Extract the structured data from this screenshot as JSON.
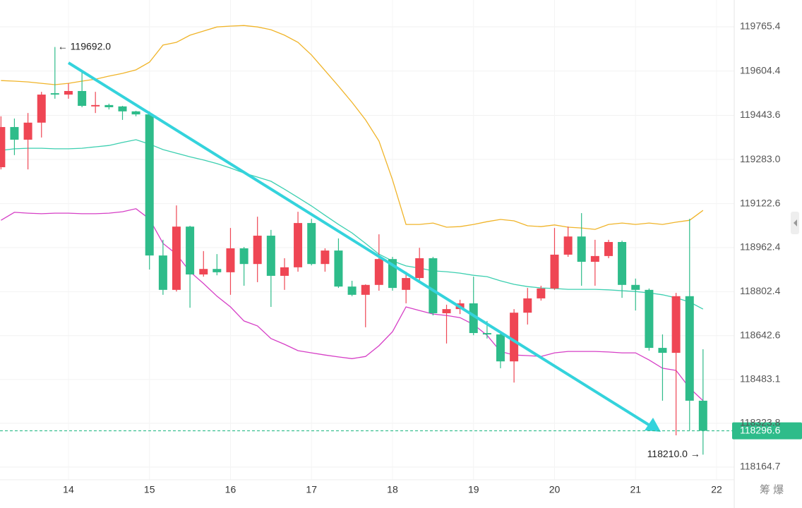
{
  "chart_data": {
    "type": "candlestick",
    "up_color": "#ef4654",
    "down_color": "#2ebc8a",
    "x": [
      13.167,
      13.333,
      13.5,
      13.667,
      13.833,
      14,
      14.167,
      14.333,
      14.5,
      14.667,
      14.833,
      15,
      15.167,
      15.333,
      15.5,
      15.667,
      15.833,
      16,
      16.167,
      16.333,
      16.5,
      16.667,
      16.833,
      17,
      17.167,
      17.333,
      17.5,
      17.667,
      17.833,
      18,
      18.167,
      18.333,
      18.5,
      18.667,
      18.833,
      19,
      19.167,
      19.333,
      19.5,
      19.667,
      19.833,
      20,
      20.167,
      20.333,
      20.5,
      20.667,
      20.833,
      21,
      21.167,
      21.333,
      21.5,
      21.667,
      21.833
    ],
    "open": [
      119255,
      119401,
      119355,
      119417,
      119524,
      119519,
      119532,
      119476,
      119481,
      119476,
      119458,
      119447,
      118934,
      118809,
      119039,
      118865,
      118885,
      118873,
      118960,
      118903,
      119006,
      118860,
      118891,
      119052,
      118903,
      118952,
      118821,
      118791,
      118827,
      118921,
      118809,
      118852,
      118924,
      118724,
      118739,
      118760,
      118652,
      118647,
      118549,
      118726,
      118778,
      118814,
      118937,
      119003,
      118911,
      118932,
      118983,
      118827,
      118809,
      118598,
      118580,
      118786,
      118406
    ],
    "high": [
      119440,
      119432,
      119452,
      119529,
      119692,
      119560,
      119604,
      119529,
      119486,
      119478,
      119460,
      119458,
      118991,
      119116,
      119042,
      118950,
      118939,
      119034,
      118965,
      119075,
      119027,
      118924,
      119093,
      119067,
      118960,
      118996,
      118842,
      118829,
      119011,
      118929,
      118875,
      118962,
      118929,
      118755,
      118773,
      118857,
      118696,
      118657,
      118739,
      118816,
      118824,
      119034,
      119039,
      119088,
      118991,
      118991,
      118988,
      118850,
      118814,
      118647,
      118798,
      119067,
      118593
    ],
    "low": [
      119247,
      119299,
      119247,
      119363,
      119504,
      119504,
      119473,
      119452,
      119465,
      119427,
      119440,
      118883,
      118791,
      118803,
      118744,
      118857,
      118862,
      118791,
      118824,
      118837,
      118747,
      118809,
      118875,
      118898,
      118875,
      118816,
      118786,
      118673,
      118806,
      118806,
      118760,
      118842,
      118716,
      118614,
      118721,
      118644,
      118632,
      118524,
      118472,
      118683,
      118770,
      118809,
      118929,
      118824,
      118824,
      118924,
      118780,
      118734,
      118588,
      118406,
      118280,
      118298,
      118210.0
    ],
    "close": [
      119401,
      119355,
      119417,
      119519,
      119519,
      119532,
      119478,
      119481,
      119473,
      119458,
      119447,
      118934,
      118809,
      119039,
      118865,
      118885,
      118873,
      118960,
      118903,
      119006,
      118860,
      118891,
      119052,
      118903,
      118952,
      118821,
      118791,
      118827,
      118921,
      118816,
      118852,
      118924,
      118724,
      118739,
      118760,
      118652,
      118647,
      118549,
      118726,
      118778,
      118814,
      118937,
      119003,
      118911,
      118932,
      118983,
      118827,
      118809,
      118598,
      118580,
      118786,
      118406,
      118296.6
    ],
    "bands": [
      {
        "color": "#f0b429",
        "values": [
          119570,
          119568,
          119565,
          119560,
          119555,
          119560,
          119568,
          119575,
          119586,
          119596,
          119609,
          119637,
          119699,
          119709,
          119735,
          119750,
          119765,
          119768,
          119770,
          119765,
          119755,
          119735,
          119709,
          119663,
          119606,
          119550,
          119491,
          119427,
          119350,
          119209,
          119047,
          119047,
          119052,
          119037,
          119039,
          119047,
          119057,
          119065,
          119060,
          119042,
          119039,
          119045,
          119037,
          119034,
          119029,
          119047,
          119052,
          119047,
          119052,
          119047,
          119055,
          119062,
          119098
        ]
      },
      {
        "color": "#3ccfb0",
        "values": [
          119316,
          119322,
          119324,
          119324,
          119322,
          119322,
          119324,
          119329,
          119334,
          119345,
          119355,
          119339,
          119319,
          119306,
          119293,
          119281,
          119268,
          119252,
          119234,
          119219,
          119204,
          119175,
          119145,
          119114,
          119080,
          119047,
          119016,
          118978,
          118939,
          118914,
          118896,
          118888,
          118878,
          118875,
          118870,
          118862,
          118857,
          118842,
          118829,
          118821,
          118816,
          118814,
          118811,
          118811,
          118811,
          118809,
          118806,
          118803,
          118798,
          118791,
          118780,
          118765,
          118739
        ]
      },
      {
        "color": "#d63fc6",
        "values": [
          119062,
          119091,
          119088,
          119086,
          119088,
          119088,
          119086,
          119086,
          119088,
          119093,
          119104,
          119067,
          118978,
          118939,
          118875,
          118832,
          118786,
          118747,
          118696,
          118678,
          118632,
          118611,
          118588,
          118580,
          118572,
          118565,
          118559,
          118567,
          118606,
          118657,
          118747,
          118734,
          118721,
          118716,
          118708,
          118683,
          118644,
          118585,
          118572,
          118570,
          118567,
          118580,
          118585,
          118585,
          118585,
          118583,
          118580,
          118580,
          118554,
          118524,
          118516,
          118452,
          118406
        ]
      }
    ],
    "xlim": [
      13.155,
      22.218
    ],
    "xticks": [
      14,
      15,
      16,
      17,
      18,
      19,
      20,
      21,
      22
    ],
    "ylim": [
      118118.5,
      119862.9
    ],
    "yticks": [
      119765.4,
      119604.4,
      119443.6,
      {
        "value": 119283,
        "label": "119283.0"
      },
      119122.6,
      118962.4,
      118802.4,
      118642.6,
      118483.1,
      118323.8,
      118164.7
    ],
    "grid": true,
    "annotations": [
      {
        "text": "← 119692.0"
      },
      {
        "text": "118210.0 →"
      }
    ]
  },
  "ui": {
    "corner_text": "筹 爆"
  }
}
